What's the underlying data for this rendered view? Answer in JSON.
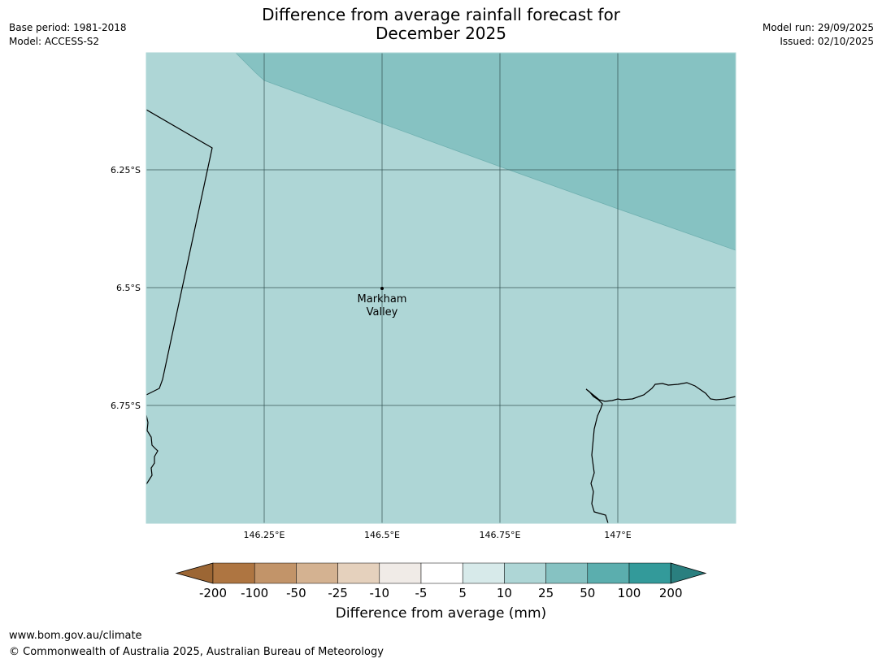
{
  "header": {
    "title_line1": "Difference from average rainfall forecast for",
    "title_line2": "December 2025",
    "base_period": "Base period: 1981-2018",
    "model": "Model: ACCESS-S2",
    "model_run": "Model run: 29/09/2025",
    "issued": "Issued: 02/10/2025"
  },
  "map": {
    "lat_labels": [
      "6.25°S",
      "6.5°S",
      "6.75°S"
    ],
    "lon_labels": [
      "146.25°E",
      "146.5°E",
      "146.75°E",
      "147°E"
    ],
    "place": {
      "name_line1": "Markham",
      "name_line2": "Valley"
    },
    "colors": {
      "band_10_25": "#aed6d6",
      "band_25_50": "#86c2c2",
      "grid": "#2f4f4f",
      "coast": "#000000"
    }
  },
  "colorbar": {
    "ticks": [
      "-200",
      "-100",
      "-50",
      "-25",
      "-10",
      "-5",
      "5",
      "10",
      "25",
      "50",
      "100",
      "200"
    ],
    "colors": [
      "#9c6634",
      "#ae7541",
      "#c29469",
      "#d4b291",
      "#e5d1bd",
      "#f0ebe7",
      "#ffffff",
      "#d7eaea",
      "#aed6d6",
      "#86c2c2",
      "#5baeae",
      "#339a9a",
      "#2a7f7f"
    ],
    "label": "Difference from average (mm)"
  },
  "footer": {
    "url": "www.bom.gov.au/climate",
    "copyright": "© Commonwealth of Australia 2025, Australian Bureau of Meteorology"
  }
}
